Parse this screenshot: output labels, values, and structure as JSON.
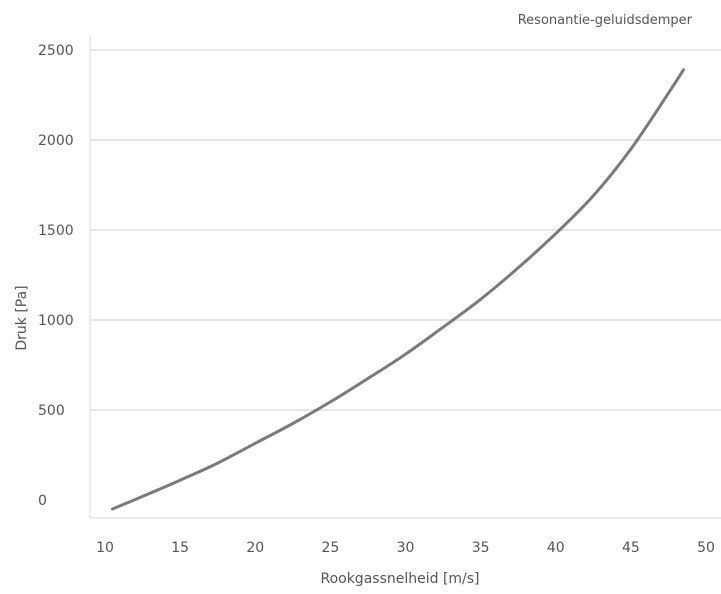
{
  "chart_data": {
    "type": "line",
    "title": "",
    "xlabel": "Rookgassnelheid [m/s]",
    "ylabel": "Druk [Pa]",
    "xlim": [
      10,
      50
    ],
    "ylim": [
      0,
      2500
    ],
    "x_ticks": [
      10,
      15,
      20,
      25,
      30,
      35,
      40,
      45,
      50
    ],
    "y_ticks": [
      0,
      500,
      1000,
      1500,
      2000,
      2500
    ],
    "grid": true,
    "legend_position": "top-right",
    "line_color": "#7a7a7a",
    "grid_color": "#e6e6e6",
    "series": [
      {
        "name": "Resonantie-geluidsdemper",
        "x": [
          10.5,
          12.5,
          15,
          17.5,
          20,
          22.5,
          25,
          27.5,
          30,
          32.5,
          35,
          37.5,
          40,
          42.5,
          45,
          47.5,
          48.5
        ],
        "y": [
          -50,
          20,
          110,
          205,
          315,
          425,
          545,
          675,
          810,
          960,
          1115,
          1290,
          1480,
          1690,
          1950,
          2260,
          2390
        ]
      }
    ]
  }
}
